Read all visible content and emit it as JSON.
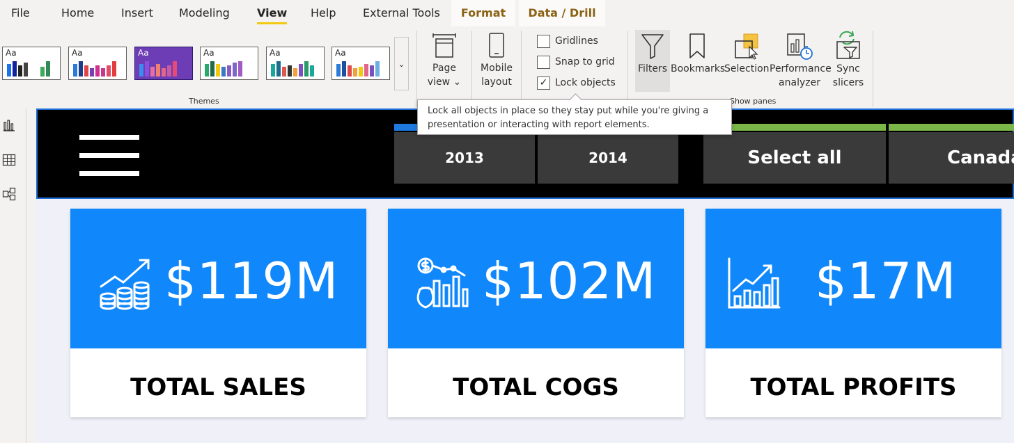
{
  "menu": {
    "items": [
      "File",
      "Home",
      "Insert",
      "Modeling",
      "View",
      "Help",
      "External Tools"
    ],
    "active": "View",
    "contextual_tabs": [
      "Format",
      "Data / Drill"
    ]
  },
  "ribbon": {
    "themes": {
      "label": "Themes",
      "swatch_text": "Aa",
      "selected_index": 2,
      "scroll_glyph": "⌄"
    },
    "page_view": {
      "line1": "Page",
      "line2": "view ⌄"
    },
    "mobile_layout": {
      "line1": "Mobile",
      "line2": "layout"
    },
    "checkboxes": [
      {
        "label": "Gridlines",
        "checked": false
      },
      {
        "label": "Snap to grid",
        "checked": false
      },
      {
        "label": "Lock objects",
        "checked": true
      }
    ],
    "show_panes": {
      "label": "Show panes",
      "filters": "Filters",
      "bookmarks": "Bookmarks",
      "selection": "Selection",
      "performance": {
        "line1": "Performance",
        "line2": "analyzer"
      },
      "sync": {
        "line1": "Sync",
        "line2": "slicers"
      }
    }
  },
  "tooltip": {
    "line1": "Lock all objects in place so they stay put while you're giving a",
    "line2": "presentation or interacting with report elements."
  },
  "canvas": {
    "year_slicer": [
      "2013",
      "2014"
    ],
    "country_slicer": [
      "Select all",
      "Canada"
    ],
    "kpis": [
      {
        "value": "$119M",
        "label": "TOTAL SALES",
        "icon": "coins-growth-icon"
      },
      {
        "value": "$102M",
        "label": "TOTAL COGS",
        "icon": "money-bag-chart-icon"
      },
      {
        "value": "$17M",
        "label": "TOTAL PROFITS",
        "icon": "bar-growth-icon"
      }
    ]
  },
  "colors": {
    "kpi_blue": "#1087fa",
    "year_slicer_bar": "#1f7ae0",
    "country_slicer_bar": "#7ab648",
    "active_tab_underline": "#f2c811"
  }
}
